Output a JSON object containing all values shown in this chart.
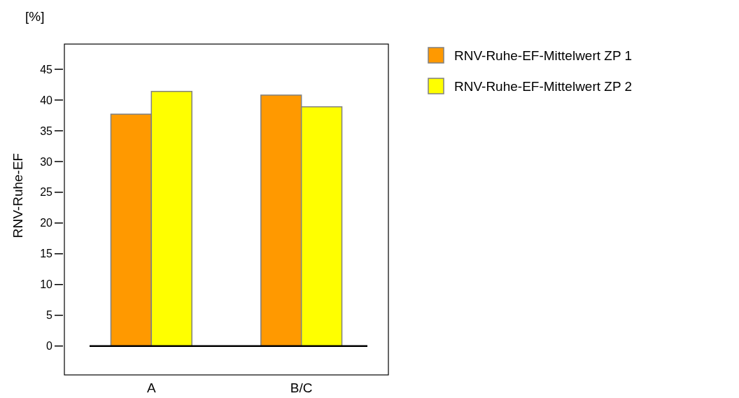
{
  "chart_data": {
    "type": "bar",
    "ylabel": "RNV-Ruhe-EF",
    "annotations": [
      "[%]"
    ],
    "categories": [
      "A",
      "B/C"
    ],
    "series": [
      {
        "name": "RNV-Ruhe-EF-Mittelwert ZP 1",
        "color": "#ff9900",
        "values": [
          37.7,
          40.8
        ]
      },
      {
        "name": "RNV-Ruhe-EF-Mittelwert ZP 2",
        "color": "#ffff00",
        "values": [
          41.4,
          38.9
        ]
      }
    ],
    "ylim": [
      -4.7,
      49.1
    ],
    "yticks": [
      0,
      5,
      10,
      15,
      20,
      25,
      30,
      35,
      40,
      45
    ],
    "ref_lines": [
      {
        "axis": "y",
        "value": 0,
        "color": "#000000"
      }
    ],
    "grid": false,
    "legend": "top right"
  }
}
